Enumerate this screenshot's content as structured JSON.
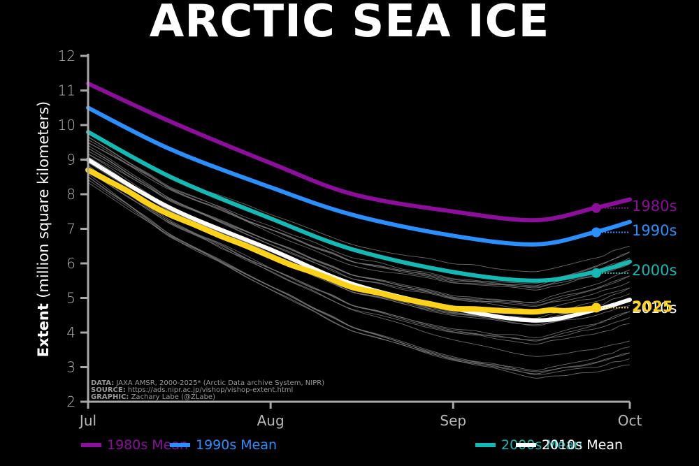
{
  "title": "ARCTIC SEA ICE",
  "colors": {
    "c1980s": "#8B0F9A",
    "c1990s": "#2C8FFF",
    "c2000s": "#15B9B4",
    "c2010s": "#FFFFFF",
    "c2025": "#FFD21A",
    "thin": "#8a8a8a",
    "axis": "#a8a8a8"
  },
  "notes": {
    "data_label": "DATA:",
    "data_text": " JAXA AMSR, 2000-2025* (Arctic Data archive System, NIPR)",
    "source_label": "SOURCE:",
    "source_text": " https://ads.nipr.ac.jp/vishop/vishop-extent.html",
    "graphic_label": "GRAPHIC:",
    "graphic_text": " Zachary Labe (@ZLabe)"
  },
  "end_labels": {
    "l1980s": "1980s",
    "l1990s": "1990s",
    "l2000s": "2000s",
    "l2010s": "2010s",
    "l2025": "2025"
  },
  "legend": [
    {
      "label": "1980s Mean",
      "color": "#8B0F9A"
    },
    {
      "label": "1990s Mean",
      "color": "#2C8FFF"
    },
    {
      "label": "2000s Mean",
      "color": "#15B9B4"
    },
    {
      "label": "2010s Mean",
      "color": "#FFFFFF"
    }
  ],
  "chart_data": {
    "type": "line",
    "title": "ARCTIC SEA ICE",
    "xlabel": "",
    "ylabel": "Extent (million square kilometers)",
    "ylim": [
      2,
      12
    ],
    "yticks": [
      2,
      3,
      4,
      5,
      6,
      7,
      8,
      9,
      10,
      11,
      12
    ],
    "xticks": [
      "Jul",
      "Aug",
      "Sep",
      "Oct"
    ],
    "grid": false,
    "legend_position": "bottom",
    "x": [
      "Jul 1",
      "Jul 15",
      "Aug 1",
      "Aug 15",
      "Sep 1",
      "Sep 15",
      "Sep 25",
      "Oct 1"
    ],
    "series": [
      {
        "name": "1980s Mean",
        "values": [
          11.2,
          10.1,
          8.9,
          8.0,
          7.5,
          7.25,
          7.6,
          7.85
        ]
      },
      {
        "name": "1990s Mean",
        "values": [
          10.5,
          9.3,
          8.2,
          7.4,
          6.8,
          6.55,
          6.9,
          7.2
        ]
      },
      {
        "name": "2000s Mean",
        "values": [
          9.8,
          8.5,
          7.3,
          6.4,
          5.75,
          5.5,
          5.75,
          6.05
        ]
      },
      {
        "name": "2010s Mean",
        "values": [
          9.0,
          7.6,
          6.4,
          5.4,
          4.7,
          4.35,
          4.65,
          4.95
        ]
      },
      {
        "name": "2025",
        "values": [
          8.7,
          7.4,
          6.2,
          5.3,
          4.7,
          4.6,
          4.7,
          null
        ]
      }
    ],
    "markers_latest": {
      "1980s": 7.6,
      "1990s": 6.9,
      "2000s": 5.72,
      "2025": 4.72
    },
    "annotations": [
      "DATA: JAXA AMSR, 2000-2025* (Arctic Data archive System, NIPR)",
      "SOURCE: https://ads.nipr.ac.jp/vishop/vishop-extent.html",
      "GRAPHIC: Zachary Labe (@ZLabe)"
    ]
  }
}
